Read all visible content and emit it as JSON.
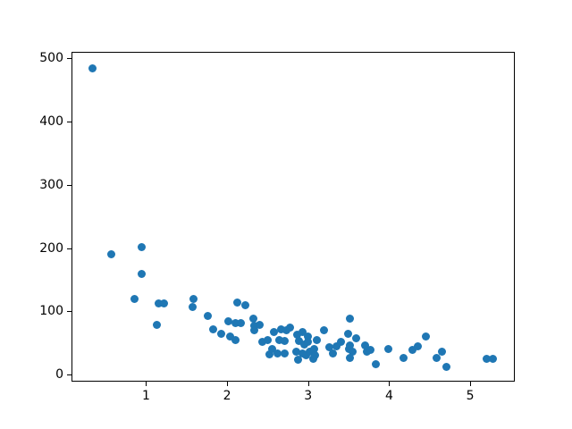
{
  "figure": {
    "kind": "matplotlib-scatter-figure",
    "background_color": "#ffffff",
    "spine_color": "#000000",
    "tick_color": "#000000"
  },
  "chart_data": {
    "type": "scatter",
    "title": "",
    "xlabel": "",
    "ylabel": "",
    "grid": false,
    "legend": null,
    "xlim": [
      0.08,
      5.55
    ],
    "ylim": [
      -11,
      510
    ],
    "xticks": [
      1,
      2,
      3,
      4,
      5
    ],
    "xtick_labels": [
      "1",
      "2",
      "3",
      "4",
      "5"
    ],
    "yticks": [
      0,
      100,
      200,
      300,
      400,
      500
    ],
    "ytick_labels": [
      "0",
      "100",
      "200",
      "300",
      "400",
      "500"
    ],
    "marker_color": "#1f77b4",
    "marker_diameter_px": 9,
    "points": [
      [
        0.34,
        484
      ],
      [
        0.57,
        190
      ],
      [
        0.86,
        119
      ],
      [
        0.95,
        202
      ],
      [
        0.95,
        159
      ],
      [
        1.13,
        79
      ],
      [
        1.15,
        112
      ],
      [
        1.22,
        113
      ],
      [
        1.57,
        107
      ],
      [
        1.59,
        120
      ],
      [
        1.76,
        93
      ],
      [
        1.83,
        71
      ],
      [
        1.93,
        64
      ],
      [
        2.01,
        84
      ],
      [
        2.04,
        60
      ],
      [
        2.1,
        81
      ],
      [
        2.1,
        55
      ],
      [
        2.13,
        114
      ],
      [
        2.17,
        81
      ],
      [
        2.23,
        110
      ],
      [
        2.32,
        88
      ],
      [
        2.34,
        77
      ],
      [
        2.33,
        70
      ],
      [
        2.4,
        78
      ],
      [
        2.43,
        52
      ],
      [
        2.5,
        55
      ],
      [
        2.52,
        32
      ],
      [
        2.56,
        40
      ],
      [
        2.58,
        68
      ],
      [
        2.62,
        34
      ],
      [
        2.64,
        55
      ],
      [
        2.67,
        72
      ],
      [
        2.71,
        53
      ],
      [
        2.71,
        34
      ],
      [
        2.73,
        70
      ],
      [
        2.78,
        74
      ],
      [
        2.85,
        37
      ],
      [
        2.86,
        63
      ],
      [
        2.88,
        23
      ],
      [
        2.89,
        53
      ],
      [
        2.93,
        67
      ],
      [
        2.93,
        34
      ],
      [
        2.95,
        47
      ],
      [
        2.97,
        30
      ],
      [
        3.0,
        60
      ],
      [
        3.0,
        52
      ],
      [
        3.02,
        37
      ],
      [
        3.06,
        25
      ],
      [
        3.07,
        41
      ],
      [
        3.09,
        30
      ],
      [
        3.11,
        55
      ],
      [
        3.2,
        70
      ],
      [
        3.26,
        44
      ],
      [
        3.31,
        34
      ],
      [
        3.35,
        45
      ],
      [
        3.41,
        52
      ],
      [
        3.49,
        64
      ],
      [
        3.5,
        41
      ],
      [
        3.51,
        46
      ],
      [
        3.52,
        88
      ],
      [
        3.52,
        27
      ],
      [
        3.55,
        37
      ],
      [
        3.59,
        58
      ],
      [
        3.7,
        46
      ],
      [
        3.72,
        37
      ],
      [
        3.77,
        39
      ],
      [
        3.83,
        16
      ],
      [
        3.99,
        41
      ],
      [
        4.18,
        27
      ],
      [
        4.29,
        39
      ],
      [
        4.35,
        45
      ],
      [
        4.45,
        60
      ],
      [
        4.58,
        27
      ],
      [
        4.65,
        37
      ],
      [
        4.71,
        13
      ],
      [
        5.2,
        25
      ],
      [
        5.28,
        25
      ]
    ]
  }
}
